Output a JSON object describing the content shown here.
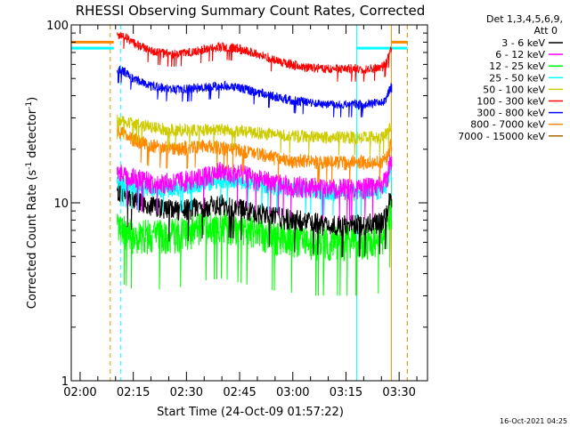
{
  "chart_data": {
    "type": "line",
    "title": "RHESSI Observing Summary Count Rates, Corrected",
    "xlabel": "Start Time (24-Oct-09 01:57:22)",
    "ylabel": "Corrected Count Rate (s⁻¹ detector⁻¹)",
    "ylabel_parts": [
      "Corrected Count Rate (s",
      "-1",
      " detector",
      "-1",
      ")"
    ],
    "y_scale": "log",
    "ylim": [
      1,
      100
    ],
    "y_ticks": [
      {
        "v": 1,
        "label": "1"
      },
      {
        "v": 10,
        "label": "10"
      },
      {
        "v": 100,
        "label": "100"
      }
    ],
    "xlim_min": [
      -2.5,
      98
    ],
    "x_ticks": [
      {
        "m": 0,
        "label": "02:00"
      },
      {
        "m": 15,
        "label": "02:15"
      },
      {
        "m": 30,
        "label": "02:30"
      },
      {
        "m": 45,
        "label": "02:45"
      },
      {
        "m": 60,
        "label": "03:00"
      },
      {
        "m": 75,
        "label": "03:15"
      },
      {
        "m": 90,
        "label": "03:30"
      }
    ],
    "grid": false,
    "legend_position": "right",
    "detector_info_line1": "Det 1,3,4,5,6,9,",
    "detector_info_line2": "Att 0",
    "timestamp": "16-Oct-2021 04:25",
    "series": [
      {
        "name": "3 - 6 keV",
        "color": "#000000",
        "x": [
          12,
          15,
          20,
          25,
          30,
          35,
          40,
          45,
          50,
          55,
          60,
          65,
          70,
          75,
          80,
          85,
          86.5,
          87.5
        ],
        "y": [
          11.5,
          10.5,
          9.5,
          9.2,
          9.2,
          9.6,
          9.8,
          9.4,
          8.8,
          8.4,
          8.0,
          7.8,
          7.6,
          7.5,
          7.6,
          7.8,
          8.5,
          11
        ]
      },
      {
        "name": "6 - 12 keV",
        "color": "#ff00ff",
        "x": [
          12,
          15,
          20,
          25,
          30,
          35,
          40,
          45,
          50,
          55,
          60,
          65,
          70,
          75,
          80,
          85,
          86.5,
          87.5
        ],
        "y": [
          15,
          14,
          13,
          13,
          13.3,
          14,
          15,
          14.5,
          13.5,
          13,
          12.5,
          12.2,
          12,
          12,
          12.2,
          12.6,
          13.5,
          17
        ]
      },
      {
        "name": "12 - 25 keV",
        "color": "#00ff00",
        "x": [
          12,
          15,
          20,
          25,
          30,
          35,
          40,
          45,
          50,
          55,
          60,
          65,
          70,
          75,
          80,
          85,
          86.5,
          87.5
        ],
        "y": [
          7.0,
          6.5,
          6.5,
          6.5,
          6.8,
          7.3,
          7.5,
          7.1,
          6.7,
          6.4,
          6.2,
          6.0,
          6.0,
          6.0,
          6.0,
          6.2,
          6.8,
          9
        ]
      },
      {
        "name": "25 - 50 keV",
        "color": "#00ffff",
        "x": [
          12,
          15,
          20,
          25,
          30,
          35,
          40,
          45,
          50,
          55,
          60,
          65,
          70,
          75,
          80,
          85,
          86.5,
          87.5
        ],
        "y": [
          13,
          12.5,
          12,
          12,
          12.3,
          13,
          13.5,
          13.3,
          12.7,
          12.3,
          12,
          11.8,
          11.6,
          11.5,
          11.5,
          11.7,
          12.5,
          15
        ]
      },
      {
        "name": "50 - 100 keV",
        "color": "#cccc00",
        "x": [
          12,
          15,
          20,
          25,
          30,
          35,
          40,
          45,
          50,
          55,
          60,
          65,
          70,
          75,
          80,
          85,
          86.5,
          87.5
        ],
        "y": [
          29,
          28,
          27,
          26,
          26,
          26,
          26,
          25.5,
          25,
          24.5,
          24,
          23.8,
          23.5,
          23.5,
          23.5,
          23.6,
          24.5,
          27
        ]
      },
      {
        "name": "100 - 300 keV",
        "color": "#ff0000",
        "x": [
          12,
          15,
          20,
          25,
          30,
          35,
          40,
          45,
          50,
          55,
          60,
          65,
          70,
          75,
          80,
          85,
          86.5,
          87.5
        ],
        "y": [
          88,
          80,
          72,
          69,
          70,
          73,
          76,
          74,
          69,
          64,
          60,
          58,
          57,
          57,
          57,
          58,
          62,
          75
        ]
      },
      {
        "name": "300 - 800 keV",
        "color": "#0000ff",
        "x": [
          12,
          15,
          20,
          25,
          30,
          35,
          40,
          45,
          50,
          55,
          60,
          65,
          70,
          75,
          80,
          85,
          86.5,
          87.5
        ],
        "y": [
          56,
          50,
          46,
          44,
          44,
          45,
          46,
          45,
          42,
          40,
          38,
          37,
          36,
          36,
          36,
          37,
          39,
          45
        ]
      },
      {
        "name": "800 - 7000 keV",
        "color": "#ff8800",
        "x": [
          12,
          15,
          20,
          25,
          30,
          35,
          40,
          45,
          50,
          55,
          60,
          65,
          70,
          75,
          80,
          85,
          86.5,
          87.5
        ],
        "y": [
          25,
          23,
          21,
          20.5,
          20.5,
          21,
          20.5,
          20,
          19,
          18,
          17.5,
          17.2,
          17,
          17,
          17,
          17.2,
          18,
          21
        ]
      },
      {
        "name": "7000 - 15000 keV",
        "color": "#aa6600",
        "x": [],
        "y": []
      }
    ],
    "attenuator_state_lines": [
      {
        "color": "#ff8800",
        "style": "solid",
        "segments": [
          [
            -2.5,
            9.5,
            80
          ],
          [
            87.8,
            92.3,
            80
          ]
        ]
      },
      {
        "color": "#00ffff",
        "style": "solid",
        "segments": [
          [
            -2.5,
            9.5,
            74
          ],
          [
            78,
            92.3,
            74
          ]
        ]
      }
    ],
    "vertical_markers": [
      {
        "m": -2.5,
        "color": "#00ffff",
        "style": "solid"
      },
      {
        "m": 8.5,
        "color": "#ff8800",
        "style": "dashed"
      },
      {
        "m": 11.5,
        "color": "#00ffff",
        "style": "dashed"
      },
      {
        "m": 78,
        "color": "#00ffff",
        "style": "solid"
      },
      {
        "m": 87.8,
        "color": "#ff8800",
        "style": "solid"
      },
      {
        "m": 92.3,
        "color": "#00ffff",
        "style": "dashed"
      },
      {
        "m": 92.3,
        "color": "#ff8800",
        "style": "dashed"
      }
    ],
    "data_window_min": [
      10.5,
      88
    ]
  }
}
